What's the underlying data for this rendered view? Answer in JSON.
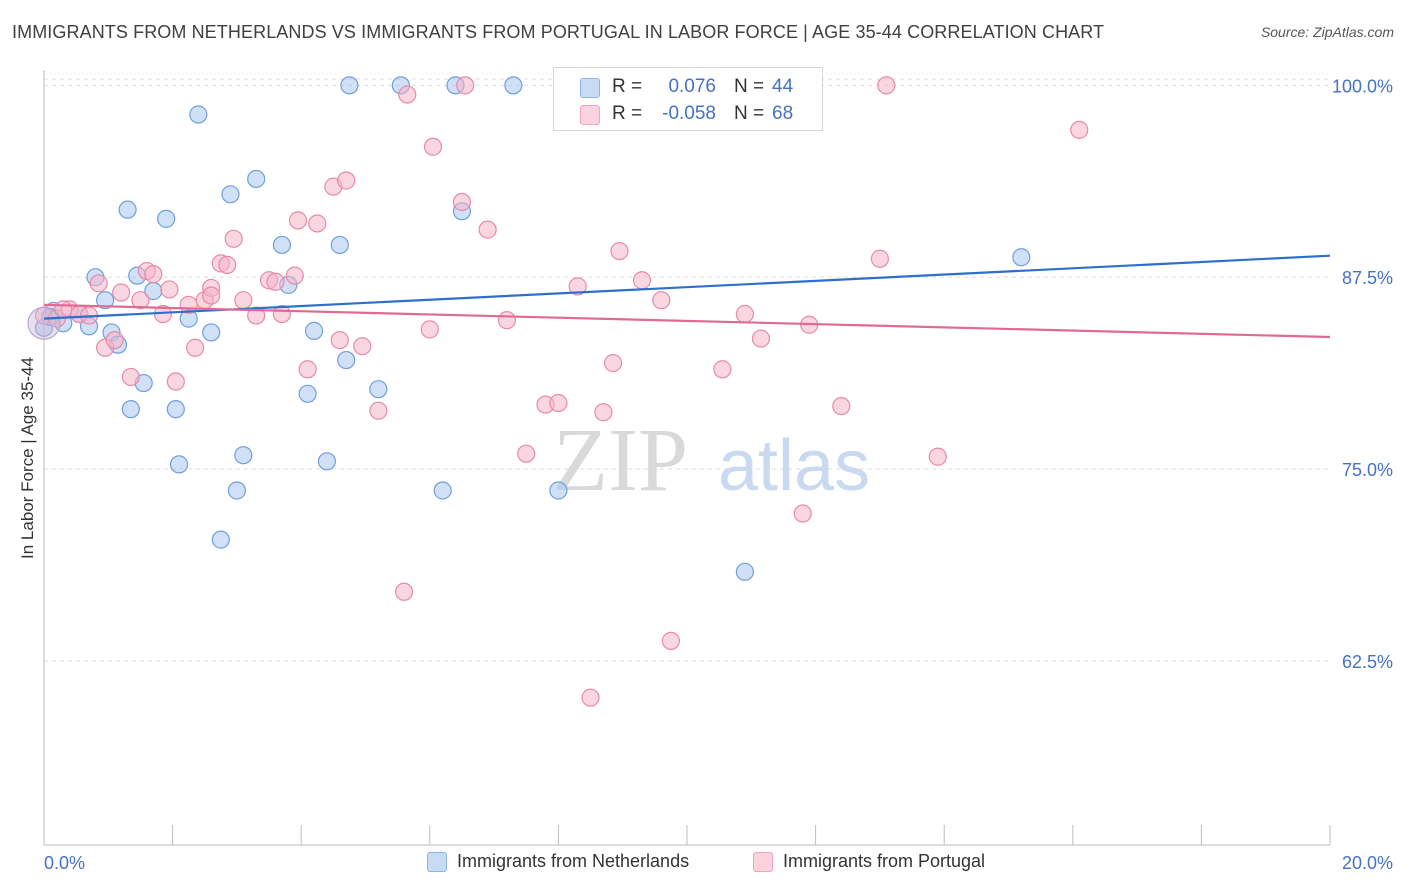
{
  "title": "IMMIGRANTS FROM NETHERLANDS VS IMMIGRANTS FROM PORTUGAL IN LABOR FORCE | AGE 35-44 CORRELATION CHART",
  "source": "Source: ZipAtlas.com",
  "watermark": {
    "zip": "ZIP",
    "atlas": "atlas"
  },
  "stats": [
    {
      "r_label": "R =",
      "r_value": "0.076",
      "n_label": "N =",
      "n_value": "44",
      "color": "#a9c6ee"
    },
    {
      "r_label": "R =",
      "r_value": "-0.058",
      "n_label": "N =",
      "n_value": "68",
      "color": "#f5b4c8"
    }
  ],
  "legend": [
    {
      "label": "Immigrants from Netherlands",
      "color": "#a9c6ee",
      "border": "#6f9fdc"
    },
    {
      "label": "Immigrants from Portugal",
      "color": "#f5b4c8",
      "border": "#e88aa8"
    }
  ],
  "chart_data": {
    "type": "scatter",
    "title": "IMMIGRANTS FROM NETHERLANDS VS IMMIGRANTS FROM PORTUGAL IN LABOR FORCE | AGE 35-44 CORRELATION CHART",
    "xlabel": "",
    "ylabel": "In Labor Force | Age 35-44",
    "xlim": [
      0,
      20
    ],
    "ylim": [
      50.5,
      101
    ],
    "x_tick_labels": [
      "0.0%",
      "20.0%"
    ],
    "y_ticks": [
      62.5,
      75.0,
      87.5,
      100.0
    ],
    "y_tick_labels": [
      "62.5%",
      "75.0%",
      "87.5%",
      "100.0%"
    ],
    "grid": true,
    "legend_position": "bottom",
    "series": [
      {
        "name": "Immigrants from Netherlands",
        "color": "#6f9fdc",
        "fill": "#a9c6ee",
        "trend": {
          "x": [
            0,
            20
          ],
          "y": [
            84.8,
            88.9
          ],
          "color": "#2f6fcc"
        },
        "points": [
          [
            0.0,
            84.2
          ],
          [
            0.15,
            85.3
          ],
          [
            0.3,
            84.5
          ],
          [
            0.55,
            85.1
          ],
          [
            0.7,
            84.3
          ],
          [
            0.8,
            87.5
          ],
          [
            0.95,
            86.0
          ],
          [
            1.05,
            83.9
          ],
          [
            1.15,
            83.1
          ],
          [
            1.3,
            91.9
          ],
          [
            1.45,
            87.6
          ],
          [
            1.55,
            80.6
          ],
          [
            1.7,
            86.6
          ],
          [
            1.9,
            91.3
          ],
          [
            2.05,
            78.9
          ],
          [
            2.1,
            75.3
          ],
          [
            2.25,
            84.8
          ],
          [
            2.4,
            98.1
          ],
          [
            2.6,
            83.9
          ],
          [
            2.75,
            70.4
          ],
          [
            2.9,
            92.9
          ],
          [
            3.0,
            73.6
          ],
          [
            3.1,
            75.9
          ],
          [
            3.3,
            93.9
          ],
          [
            3.7,
            89.6
          ],
          [
            3.8,
            87.0
          ],
          [
            4.1,
            79.9
          ],
          [
            4.4,
            75.5
          ],
          [
            4.6,
            89.6
          ],
          [
            4.7,
            82.1
          ],
          [
            4.75,
            100.0
          ],
          [
            5.2,
            80.2
          ],
          [
            5.55,
            100.0
          ],
          [
            6.2,
            73.6
          ],
          [
            6.4,
            100.0
          ],
          [
            6.5,
            91.8
          ],
          [
            7.3,
            100.0
          ],
          [
            8.0,
            73.6
          ],
          [
            8.1,
            100.0
          ],
          [
            10.9,
            68.3
          ],
          [
            15.2,
            88.8
          ],
          [
            0.1,
            84.9
          ],
          [
            1.35,
            78.9
          ],
          [
            4.2,
            84.0
          ]
        ]
      },
      {
        "name": "Immigrants from Portugal",
        "color": "#e88aa8",
        "fill": "#f5b4c8",
        "trend": {
          "x": [
            0,
            20
          ],
          "y": [
            85.7,
            83.6
          ],
          "color": "#e06a93"
        },
        "points": [
          [
            0.0,
            85.0
          ],
          [
            0.2,
            84.8
          ],
          [
            0.4,
            85.4
          ],
          [
            0.55,
            85.1
          ],
          [
            0.7,
            85.0
          ],
          [
            0.85,
            87.1
          ],
          [
            0.95,
            82.9
          ],
          [
            1.1,
            83.4
          ],
          [
            1.2,
            86.5
          ],
          [
            1.35,
            81.0
          ],
          [
            1.5,
            86.0
          ],
          [
            1.6,
            87.9
          ],
          [
            1.7,
            87.7
          ],
          [
            1.85,
            85.1
          ],
          [
            1.95,
            86.7
          ],
          [
            2.05,
            80.7
          ],
          [
            2.25,
            85.7
          ],
          [
            2.35,
            82.9
          ],
          [
            2.5,
            86.0
          ],
          [
            2.6,
            86.8
          ],
          [
            2.75,
            88.4
          ],
          [
            2.85,
            88.3
          ],
          [
            2.95,
            90.0
          ],
          [
            3.1,
            86.0
          ],
          [
            3.3,
            85.0
          ],
          [
            3.5,
            87.3
          ],
          [
            3.6,
            87.2
          ],
          [
            3.7,
            85.1
          ],
          [
            3.9,
            87.6
          ],
          [
            3.95,
            91.2
          ],
          [
            4.1,
            81.5
          ],
          [
            4.25,
            91.0
          ],
          [
            4.5,
            93.4
          ],
          [
            4.6,
            83.4
          ],
          [
            4.7,
            93.8
          ],
          [
            4.95,
            83.0
          ],
          [
            5.2,
            78.8
          ],
          [
            5.6,
            67.0
          ],
          [
            5.65,
            99.4
          ],
          [
            6.0,
            84.1
          ],
          [
            6.05,
            96.0
          ],
          [
            6.5,
            92.4
          ],
          [
            6.55,
            100.0
          ],
          [
            6.9,
            90.6
          ],
          [
            7.2,
            84.7
          ],
          [
            7.5,
            76.0
          ],
          [
            7.8,
            79.2
          ],
          [
            8.0,
            79.3
          ],
          [
            8.3,
            86.9
          ],
          [
            8.5,
            60.1
          ],
          [
            8.7,
            78.7
          ],
          [
            8.85,
            81.9
          ],
          [
            8.95,
            89.2
          ],
          [
            9.3,
            87.3
          ],
          [
            9.6,
            86.0
          ],
          [
            9.75,
            63.8
          ],
          [
            10.55,
            81.5
          ],
          [
            10.9,
            85.1
          ],
          [
            11.15,
            83.5
          ],
          [
            11.8,
            72.1
          ],
          [
            11.9,
            84.4
          ],
          [
            12.4,
            79.1
          ],
          [
            13.0,
            88.7
          ],
          [
            13.1,
            100.0
          ],
          [
            13.9,
            75.8
          ],
          [
            16.1,
            97.1
          ],
          [
            0.3,
            85.4
          ],
          [
            2.6,
            86.3
          ]
        ]
      }
    ]
  }
}
